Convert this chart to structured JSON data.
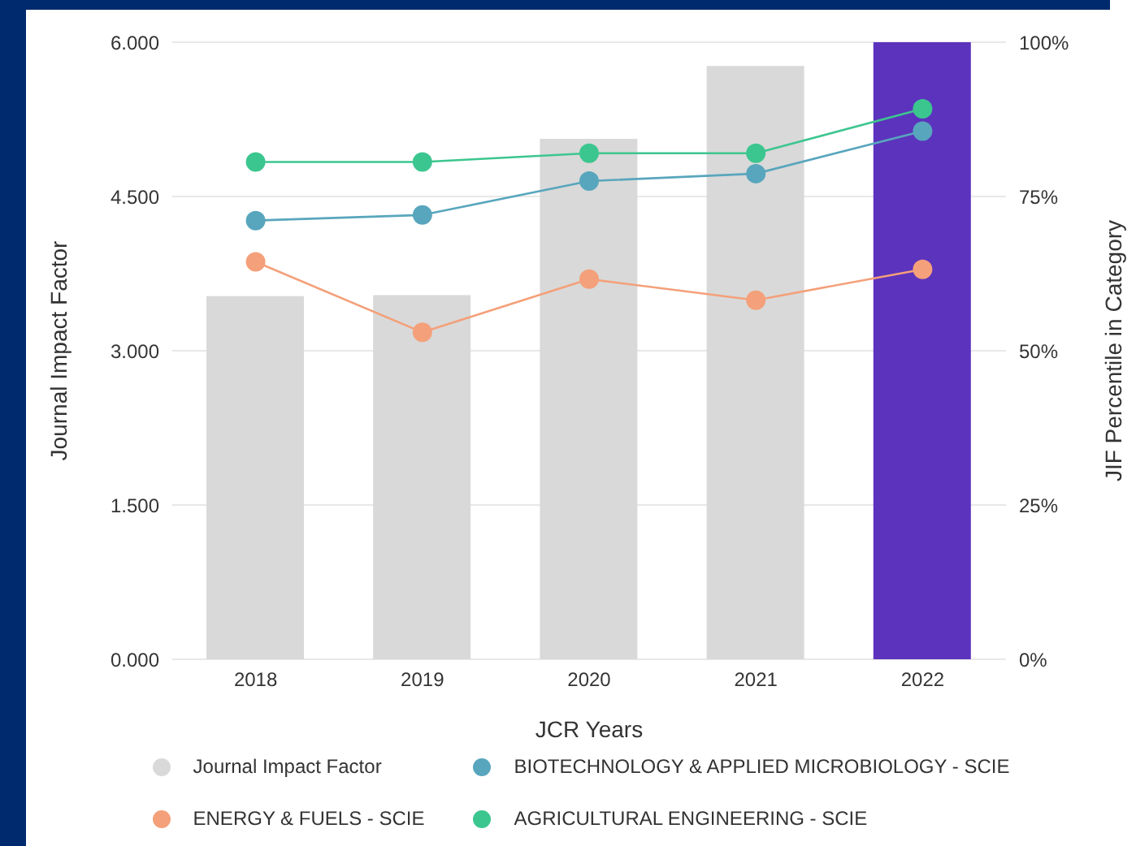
{
  "chart_data": {
    "type": "bar",
    "xlabel": "JCR Years",
    "ylabel": "Journal Impact Factor",
    "y2label": "JIF Percentile in Category",
    "categories": [
      "2018",
      "2019",
      "2020",
      "2021",
      "2022"
    ],
    "series": [
      {
        "name": "Journal Impact Factor",
        "color": "#d9d9d9",
        "colors": [
          "#d9d9d9",
          "#d9d9d9",
          "#d9d9d9",
          "#d9d9d9",
          "#5c33bd"
        ],
        "values": [
          3.53,
          3.54,
          5.06,
          5.77,
          6.0
        ]
      },
      {
        "name": "BIOTECHNOLOGY & APPLIED MICROBIOLOGY - SCIE",
        "type": "line",
        "axis": "y2",
        "color": "#58a6bd",
        "values": [
          71.1,
          72.0,
          77.5,
          78.7,
          85.6
        ]
      },
      {
        "name": "ENERGY & FUELS - SCIE",
        "type": "line",
        "axis": "y2",
        "color": "#f4a07a",
        "values": [
          64.4,
          53.0,
          61.6,
          58.2,
          63.2
        ]
      },
      {
        "name": "AGRICULTURAL ENGINEERING - SCIE",
        "type": "line",
        "axis": "y2",
        "color": "#3cc68f",
        "values": [
          80.6,
          80.6,
          82.0,
          82.0,
          89.2
        ]
      }
    ],
    "ylim": [
      0,
      6
    ],
    "yticks": [
      {
        "value": 0,
        "label": "0.000"
      },
      {
        "value": 1.5,
        "label": "1.500"
      },
      {
        "value": 3,
        "label": "3.000"
      },
      {
        "value": 4.5,
        "label": "4.500"
      },
      {
        "value": 6,
        "label": "6.000"
      }
    ],
    "y2lim": [
      0,
      100
    ],
    "y2ticks": [
      {
        "value": 0,
        "label": "0%"
      },
      {
        "value": 25,
        "label": "25%"
      },
      {
        "value": 50,
        "label": "50%"
      },
      {
        "value": 75,
        "label": "75%"
      },
      {
        "value": 100,
        "label": "100%"
      }
    ],
    "grid": "y",
    "legend": "bottom",
    "marker": "circle",
    "line_style": "solid"
  }
}
